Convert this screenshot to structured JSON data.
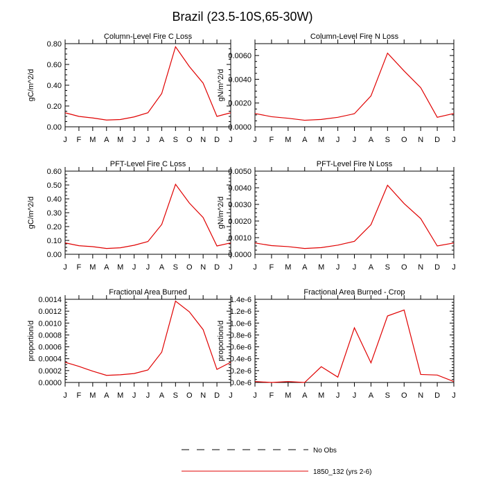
{
  "figure": {
    "title": "Brazil (23.5-10S,65-30W)"
  },
  "chart_data": [
    {
      "type": "line",
      "title": "Column-Level Fire C Loss",
      "ylabel": "gC/m^2/d",
      "xlabel": "",
      "categories": [
        "J",
        "F",
        "M",
        "A",
        "M",
        "J",
        "J",
        "A",
        "S",
        "O",
        "N",
        "D",
        "J"
      ],
      "ylim": [
        0,
        0.8
      ],
      "yticks": [
        "0.00",
        "0.20",
        "0.40",
        "0.60",
        "0.80"
      ],
      "yticks_values": [
        0,
        0.2,
        0.4,
        0.6,
        0.8
      ],
      "series": [
        {
          "name": "1850_132 (yrs 2-6)",
          "color": "#e00000",
          "values": [
            0.135,
            0.1,
            0.085,
            0.065,
            0.07,
            0.095,
            0.135,
            0.32,
            0.77,
            0.58,
            0.42,
            0.1,
            0.135
          ]
        }
      ]
    },
    {
      "type": "line",
      "title": "Column-Level Fire N Loss",
      "ylabel": "gN/m^2/d",
      "xlabel": "",
      "categories": [
        "J",
        "F",
        "M",
        "A",
        "M",
        "J",
        "J",
        "A",
        "S",
        "O",
        "N",
        "D",
        "J"
      ],
      "ylim": [
        0,
        0.007
      ],
      "yticks": [
        "0.0000",
        "0.0020",
        "0.0040",
        "0.0060"
      ],
      "yticks_values": [
        0,
        0.002,
        0.004,
        0.006
      ],
      "series": [
        {
          "name": "1850_132 (yrs 2-6)",
          "color": "#e00000",
          "values": [
            0.00112,
            0.00085,
            0.00072,
            0.00055,
            0.00062,
            0.0008,
            0.0011,
            0.0026,
            0.0062,
            0.0047,
            0.0033,
            0.0008,
            0.00112
          ]
        }
      ]
    },
    {
      "type": "line",
      "title": "PFT-Level Fire C Loss",
      "ylabel": "gC/m^2/d",
      "xlabel": "",
      "categories": [
        "J",
        "F",
        "M",
        "A",
        "M",
        "J",
        "J",
        "A",
        "S",
        "O",
        "N",
        "D",
        "J"
      ],
      "ylim": [
        0,
        0.6
      ],
      "yticks": [
        "0.00",
        "0.10",
        "0.20",
        "0.30",
        "0.40",
        "0.50",
        "0.60"
      ],
      "yticks_values": [
        0,
        0.1,
        0.2,
        0.3,
        0.4,
        0.5,
        0.6
      ],
      "series": [
        {
          "name": "1850_132 (yrs 2-6)",
          "color": "#e00000",
          "values": [
            0.082,
            0.062,
            0.055,
            0.042,
            0.047,
            0.065,
            0.092,
            0.215,
            0.505,
            0.37,
            0.265,
            0.06,
            0.082
          ]
        }
      ]
    },
    {
      "type": "line",
      "title": "PFT-Level Fire N Loss",
      "ylabel": "gN/m^2/d",
      "xlabel": "",
      "categories": [
        "J",
        "F",
        "M",
        "A",
        "M",
        "J",
        "J",
        "A",
        "S",
        "O",
        "N",
        "D",
        "J"
      ],
      "ylim": [
        0,
        0.005
      ],
      "yticks": [
        "0.0000",
        "0.0010",
        "0.0020",
        "0.0030",
        "0.0040",
        "0.0050"
      ],
      "yticks_values": [
        0,
        0.001,
        0.002,
        0.003,
        0.004,
        0.005
      ],
      "series": [
        {
          "name": "1850_132 (yrs 2-6)",
          "color": "#e00000",
          "values": [
            0.00068,
            0.00052,
            0.00046,
            0.00035,
            0.0004,
            0.00055,
            0.00078,
            0.00178,
            0.00415,
            0.00305,
            0.00215,
            0.0005,
            0.00068
          ]
        }
      ]
    },
    {
      "type": "line",
      "title": "Fractional Area Burned",
      "ylabel": "proportion/d",
      "xlabel": "",
      "categories": [
        "J",
        "F",
        "M",
        "A",
        "M",
        "J",
        "J",
        "A",
        "S",
        "O",
        "N",
        "D",
        "J"
      ],
      "ylim": [
        0,
        0.0014
      ],
      "yticks": [
        "0.0000",
        "0.0002",
        "0.0004",
        "0.0006",
        "0.0008",
        "0.0010",
        "0.0012",
        "0.0014"
      ],
      "yticks_values": [
        0,
        0.0002,
        0.0004,
        0.0006,
        0.0008,
        0.001,
        0.0012,
        0.0014
      ],
      "series": [
        {
          "name": "1850_132 (yrs 2-6)",
          "color": "#e00000",
          "values": [
            0.00034,
            0.00027,
            0.00019,
            0.00012,
            0.00013,
            0.00015,
            0.00021,
            0.00051,
            0.00137,
            0.00119,
            0.00089,
            0.00022,
            0.00034
          ]
        }
      ]
    },
    {
      "type": "line",
      "title": "Fractional Area Burned - Crop",
      "ylabel": "proportion/d",
      "xlabel": "",
      "categories": [
        "J",
        "F",
        "M",
        "A",
        "M",
        "J",
        "J",
        "A",
        "S",
        "O",
        "N",
        "D",
        "J"
      ],
      "ylim": [
        0,
        1.4e-06
      ],
      "yticks": [
        "0.0e-6",
        "0.2e-6",
        "0.4e-6",
        "0.6e-6",
        "0.8e-6",
        "1.0e-6",
        "1.2e-6",
        "1.4e-6"
      ],
      "yticks_values": [
        0,
        2e-07,
        4e-07,
        6e-07,
        8e-07,
        1e-06,
        1.2e-06,
        1.4e-06
      ],
      "series": [
        {
          "name": "1850_132 (yrs 2-6)",
          "color": "#e00000",
          "values": [
            1.5e-08,
            0,
            1.5e-08,
            0,
            2.65e-07,
            9e-08,
            9.2e-07,
            3.3e-07,
            1.12e-06,
            1.22e-06,
            1.35e-07,
            1.25e-07,
            1.5e-08
          ]
        }
      ]
    }
  ],
  "legend": {
    "items": [
      {
        "label": "No Obs",
        "style": "dashed",
        "color": "#000000"
      },
      {
        "label": "1850_132 (yrs 2-6)",
        "style": "solid",
        "color": "#e00000"
      }
    ]
  }
}
